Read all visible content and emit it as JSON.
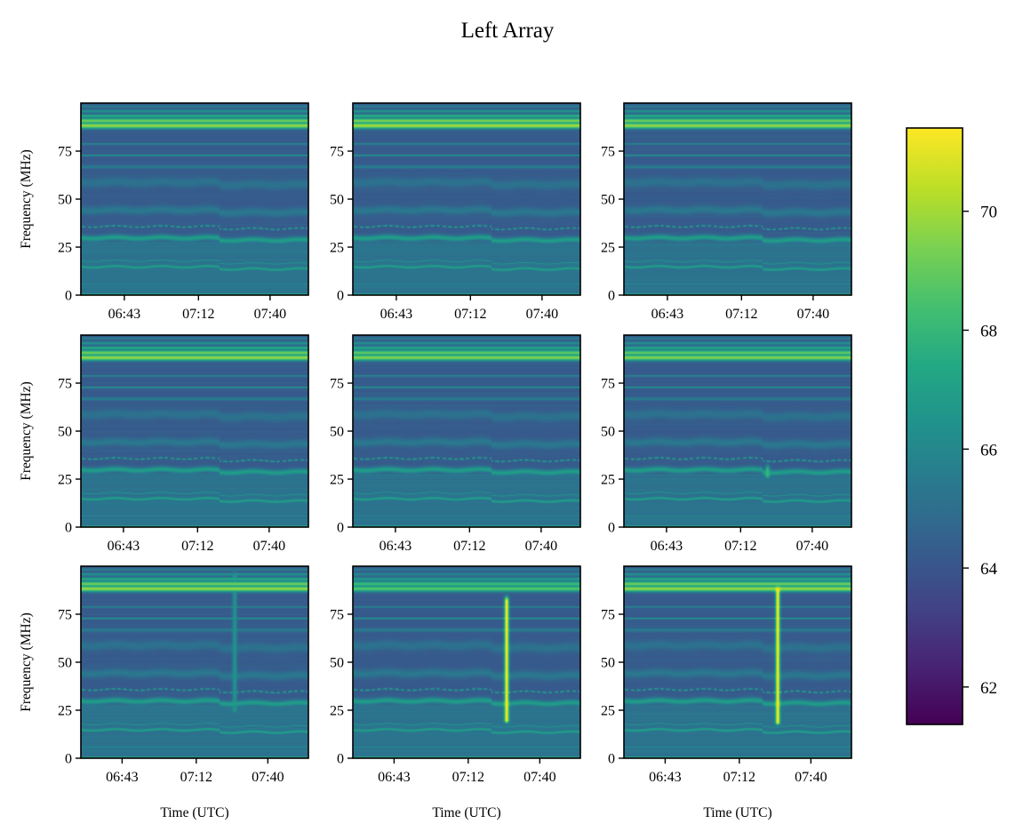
{
  "chart_data": {
    "type": "heatmap",
    "title": "Left Array",
    "layout": {
      "rows": 3,
      "cols": 3
    },
    "xlabel": "Time (UTC)",
    "ylabel": "Frequency (MHz)",
    "x_range": [
      "06:26",
      "07:55"
    ],
    "x_ticks": [
      {
        "value_min": 403,
        "label": "06:43"
      },
      {
        "value_min": 432,
        "label": "07:12"
      },
      {
        "value_min": 460,
        "label": "07:40"
      }
    ],
    "x_range_min": [
      386,
      475
    ],
    "ylim": [
      0,
      100
    ],
    "y_ticks": [
      0,
      25,
      50,
      75
    ],
    "y_tick_labels": [
      "0",
      "25",
      "50",
      "75"
    ],
    "colorbar": {
      "colormap": "viridis",
      "vmin": 61.37,
      "vmax": 71.4,
      "ticks": [
        62,
        64,
        66,
        68,
        70
      ],
      "tick_labels": [
        "62",
        "64",
        "66",
        "68",
        "70"
      ]
    },
    "background_level": 64.2,
    "common_bands": [
      {
        "freq": 88.5,
        "width": 1.6,
        "level": 69.8
      },
      {
        "freq": 91.0,
        "width": 1.4,
        "level": 69.2
      },
      {
        "freq": 93.5,
        "width": 1.0,
        "level": 67.5
      },
      {
        "freq": 96.0,
        "width": 0.8,
        "level": 66.5
      },
      {
        "freq": 98.5,
        "width": 0.6,
        "level": 65.8
      },
      {
        "freq": 79.0,
        "width": 0.4,
        "level": 66.2
      },
      {
        "freq": 73.0,
        "width": 0.4,
        "level": 66.8
      },
      {
        "freq": 67.0,
        "width": 0.9,
        "level": 65.6
      },
      {
        "freq": 59.0,
        "width": 2.5,
        "level": 65.2
      },
      {
        "freq": 44.5,
        "width": 2.2,
        "level": 65.4
      },
      {
        "freq": 36.0,
        "width": 0.4,
        "level": 67.2
      },
      {
        "freq": 30.0,
        "width": 1.6,
        "level": 66.9
      },
      {
        "freq": 18.0,
        "width": 0.4,
        "level": 66.5
      },
      {
        "freq": 15.0,
        "width": 0.9,
        "level": 67.0
      },
      {
        "freq": 6.0,
        "width": 0.5,
        "level": 66.0
      },
      {
        "freq": 4.0,
        "width": 0.5,
        "level": 65.7
      },
      {
        "freq": 0.5,
        "width": 0.5,
        "level": 68.5
      }
    ],
    "low_band_floor": {
      "from": 0,
      "to": 28,
      "level": 65.2
    },
    "panels": [
      {
        "id": 1,
        "row": 0,
        "col": 0,
        "ylabel_shown": true,
        "xlabel_shown": false,
        "fm_strength": 1.0,
        "spike": null
      },
      {
        "id": 2,
        "row": 0,
        "col": 1,
        "ylabel_shown": false,
        "xlabel_shown": false,
        "fm_strength": 1.05,
        "spike": null
      },
      {
        "id": 3,
        "row": 0,
        "col": 2,
        "ylabel_shown": false,
        "xlabel_shown": false,
        "fm_strength": 1.0,
        "spike": null
      },
      {
        "id": 4,
        "row": 1,
        "col": 0,
        "ylabel_shown": true,
        "xlabel_shown": false,
        "fm_strength": 1.0,
        "spike": null
      },
      {
        "id": 5,
        "row": 1,
        "col": 1,
        "ylabel_shown": false,
        "xlabel_shown": false,
        "fm_strength": 0.95,
        "spike": null
      },
      {
        "id": 6,
        "row": 1,
        "col": 2,
        "ylabel_shown": false,
        "xlabel_shown": false,
        "fm_strength": 0.95,
        "spike": {
          "time_min": 442,
          "freq_lo": 27,
          "freq_hi": 30,
          "level": 68.0
        }
      },
      {
        "id": 7,
        "row": 2,
        "col": 0,
        "ylabel_shown": true,
        "xlabel_shown": true,
        "fm_strength": 1.0,
        "spike": {
          "time_min": 446,
          "freq_lo": 25,
          "freq_hi": 95,
          "level": 66.5
        }
      },
      {
        "id": 8,
        "row": 2,
        "col": 1,
        "ylabel_shown": false,
        "xlabel_shown": true,
        "fm_strength": 0.8,
        "spike": {
          "time_min": 446,
          "freq_lo": 20,
          "freq_hi": 82,
          "level": 71.4
        }
      },
      {
        "id": 9,
        "row": 2,
        "col": 2,
        "ylabel_shown": false,
        "xlabel_shown": true,
        "fm_strength": 1.0,
        "spike": {
          "time_min": 446,
          "freq_lo": 19,
          "freq_hi": 88,
          "level": 71.4
        }
      }
    ]
  }
}
